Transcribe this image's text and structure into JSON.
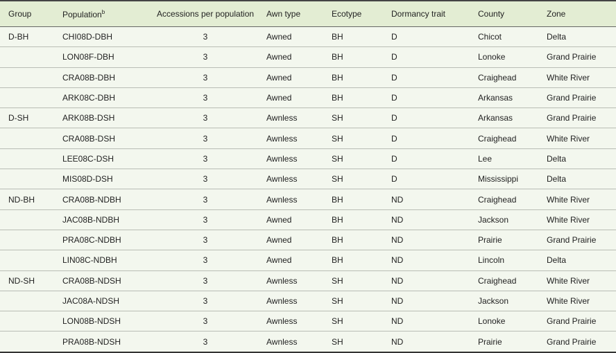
{
  "table": {
    "headers": [
      "Group",
      "Population",
      "Accessions per population",
      "Awn type",
      "Ecotype",
      "Dormancy trait",
      "County",
      "Zone"
    ],
    "population_footnote": "b",
    "rows": [
      [
        "D-BH",
        "CHI08D-DBH",
        "3",
        "Awned",
        "BH",
        "D",
        "Chicot",
        "Delta"
      ],
      [
        "",
        "LON08F-DBH",
        "3",
        "Awned",
        "BH",
        "D",
        "Lonoke",
        "Grand Prairie"
      ],
      [
        "",
        "CRA08B-DBH",
        "3",
        "Awned",
        "BH",
        "D",
        "Craighead",
        "White River"
      ],
      [
        "",
        "ARK08C-DBH",
        "3",
        "Awned",
        "BH",
        "D",
        "Arkansas",
        "Grand Prairie"
      ],
      [
        "D-SH",
        "ARK08B-DSH",
        "3",
        "Awnless",
        "SH",
        "D",
        "Arkansas",
        "Grand Prairie"
      ],
      [
        "",
        "CRA08B-DSH",
        "3",
        "Awnless",
        "SH",
        "D",
        "Craighead",
        "White River"
      ],
      [
        "",
        "LEE08C-DSH",
        "3",
        "Awnless",
        "SH",
        "D",
        "Lee",
        "Delta"
      ],
      [
        "",
        "MIS08D-DSH",
        "3",
        "Awnless",
        "SH",
        "D",
        "Mississippi",
        "Delta"
      ],
      [
        "ND-BH",
        "CRA08B-NDBH",
        "3",
        "Awnless",
        "BH",
        "ND",
        "Craighead",
        "White River"
      ],
      [
        "",
        "JAC08B-NDBH",
        "3",
        "Awned",
        "BH",
        "ND",
        "Jackson",
        "White River"
      ],
      [
        "",
        "PRA08C-NDBH",
        "3",
        "Awned",
        "BH",
        "ND",
        "Prairie",
        "Grand Prairie"
      ],
      [
        "",
        "LIN08C-NDBH",
        "3",
        "Awned",
        "BH",
        "ND",
        "Lincoln",
        "Delta"
      ],
      [
        "ND-SH",
        "CRA08B-NDSH",
        "3",
        "Awnless",
        "SH",
        "ND",
        "Craighead",
        "White River"
      ],
      [
        "",
        "JAC08A-NDSH",
        "3",
        "Awnless",
        "SH",
        "ND",
        "Jackson",
        "White River"
      ],
      [
        "",
        "LON08B-NDSH",
        "3",
        "Awnless",
        "SH",
        "ND",
        "Lonoke",
        "Grand Prairie"
      ],
      [
        "",
        "PRA08B-NDSH",
        "3",
        "Awnless",
        "SH",
        "ND",
        "Prairie",
        "Grand Prairie"
      ]
    ]
  }
}
